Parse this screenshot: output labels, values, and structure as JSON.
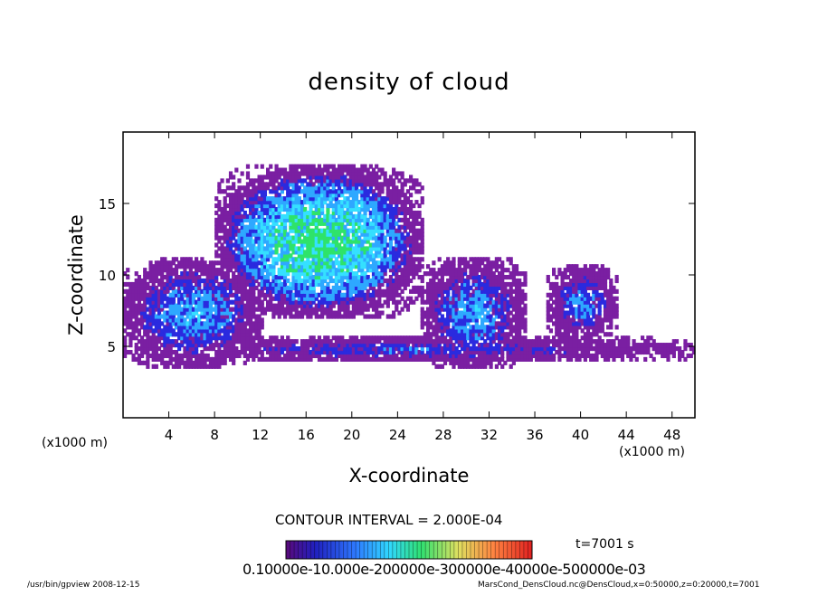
{
  "chart_data": {
    "type": "heatmap",
    "title": "density of cloud",
    "xlabel": "X-coordinate",
    "ylabel": "Z-coordinate",
    "x_unit": "(x1000 m)",
    "x_ticks": [
      4,
      8,
      12,
      16,
      20,
      24,
      28,
      32,
      36,
      40,
      44,
      48
    ],
    "y_ticks": [
      5,
      10,
      15
    ],
    "xlim": [
      0,
      50
    ],
    "ylim": [
      0,
      20
    ],
    "contour_interval": "CONTOUR INTERVAL = 2.000E-04",
    "time": "t=7001 s",
    "colorbar_labels": "0.10000e-10.000e-200000e-300000e-40000e-500000e-03",
    "colorbar_range": [
      0.0,
      0.0011
    ],
    "cloud_regions": [
      {
        "x": [
          0,
          12
        ],
        "z": [
          3.5,
          11
        ],
        "peak": 0.00035
      },
      {
        "x": [
          8,
          26
        ],
        "z": [
          7,
          17.5
        ],
        "peak": 0.00085
      },
      {
        "x": [
          26,
          35
        ],
        "z": [
          3.5,
          11
        ],
        "peak": 0.00035
      },
      {
        "x": [
          37,
          43
        ],
        "z": [
          5.5,
          10.5
        ],
        "peak": 0.0003
      },
      {
        "x": [
          0,
          50
        ],
        "z": [
          3.8,
          5.6
        ],
        "peak": 0.0002
      }
    ],
    "grid": false,
    "colors": {
      "low": "#7a1fa2",
      "mid_low": "#2a2adf",
      "mid": "#2ea8ff",
      "mid_high": "#35e0ff",
      "high": "#2ee36a"
    }
  },
  "footer": {
    "left": "/usr/bin/gpview   2008-12-15",
    "right": "MarsCond_DensCloud.nc@DensCloud,x=0:50000,z=0:20000,t=7001"
  }
}
